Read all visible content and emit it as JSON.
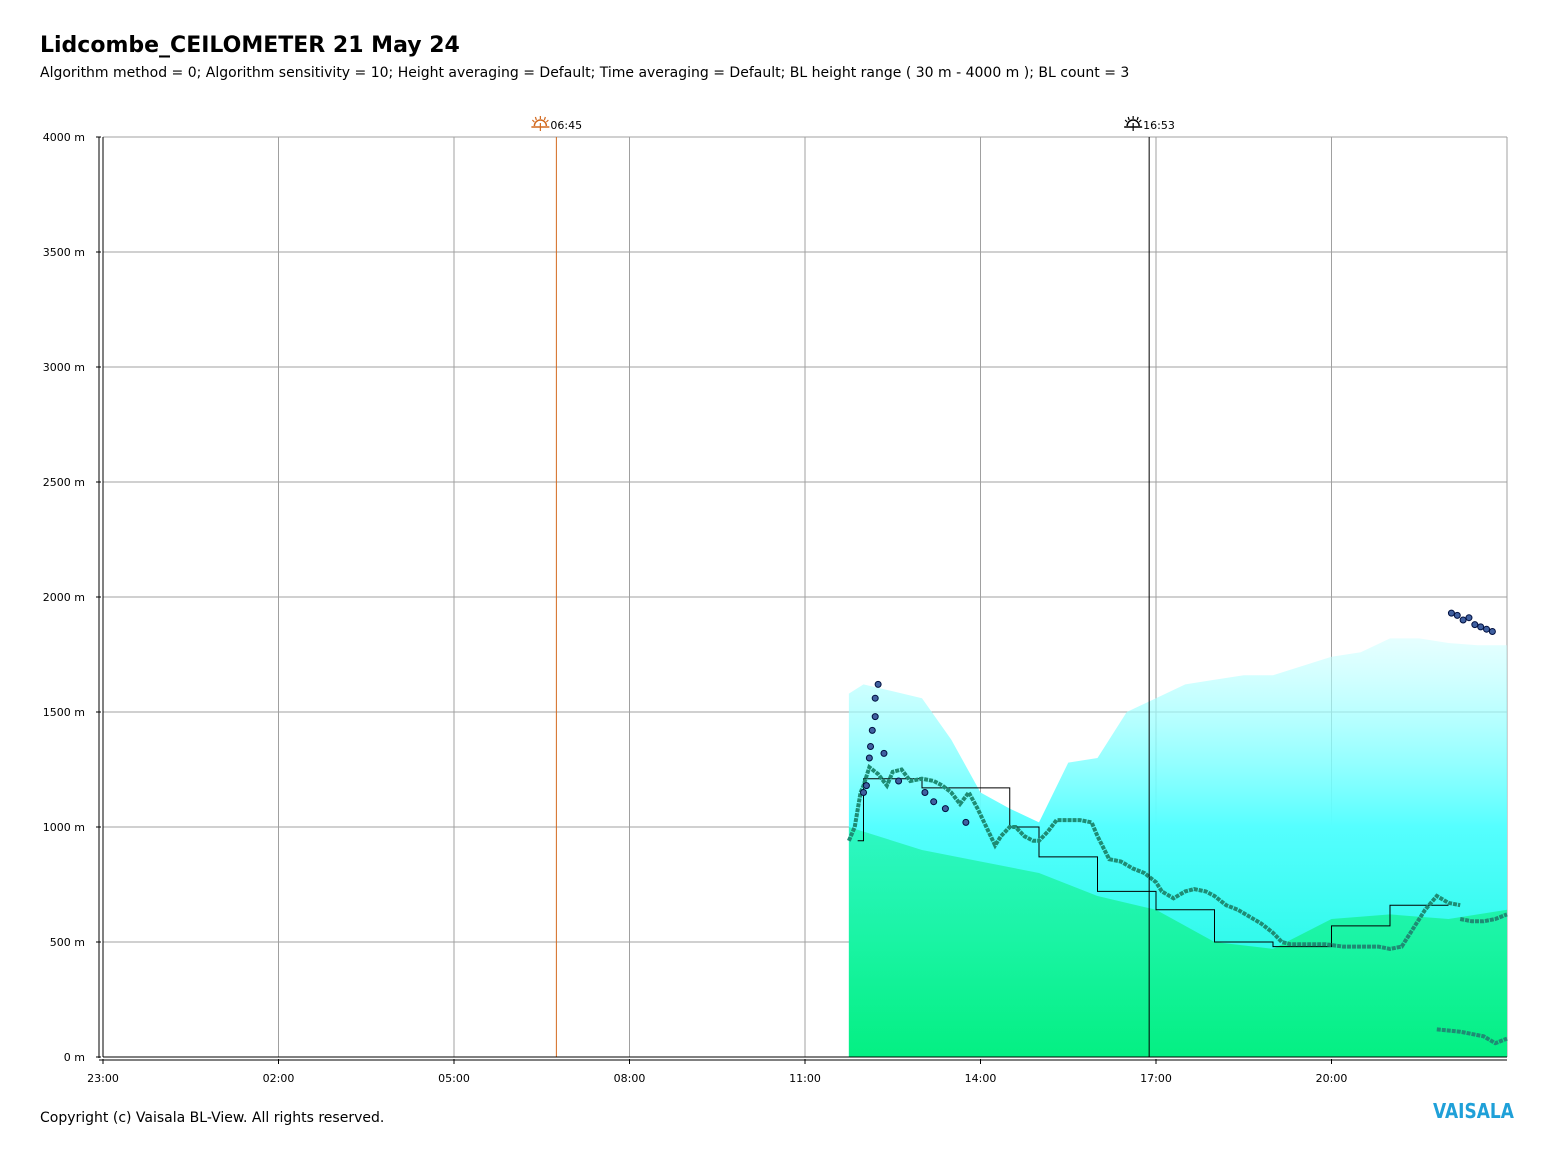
{
  "header": {
    "title": "Lidcombe_CEILOMETER 21 May 24",
    "subtitle": "Algorithm method = 0; Algorithm sensitivity = 10; Height averaging = Default; Time averaging = Default; BL height range ( 30 m - 4000 m ); BL count = 3"
  },
  "footer": {
    "copyright": "Copyright (c) Vaisala BL-View. All rights reserved.",
    "logo": "VAISALA"
  },
  "chart_data": {
    "type": "heatmap",
    "ylim": [
      0,
      4000
    ],
    "xlim_hours": [
      0,
      24
    ],
    "y_ticks": [
      {
        "value": 0,
        "label": "0 m"
      },
      {
        "value": 500,
        "label": "500 m"
      },
      {
        "value": 1000,
        "label": "1000 m"
      },
      {
        "value": 1500,
        "label": "1500 m"
      },
      {
        "value": 2000,
        "label": "2000 m"
      },
      {
        "value": 2500,
        "label": "2500 m"
      },
      {
        "value": 3000,
        "label": "3000 m"
      },
      {
        "value": 3500,
        "label": "3500 m"
      },
      {
        "value": 4000,
        "label": "4000 m"
      }
    ],
    "x_ticks": [
      {
        "value": 0,
        "label": "23:00"
      },
      {
        "value": 3,
        "label": "02:00"
      },
      {
        "value": 6,
        "label": "05:00"
      },
      {
        "value": 9,
        "label": "08:00"
      },
      {
        "value": 12,
        "label": "11:00"
      },
      {
        "value": 15,
        "label": "14:00"
      },
      {
        "value": 18,
        "label": "17:00"
      },
      {
        "value": 21,
        "label": "20:00"
      }
    ],
    "grid": true,
    "sunrise": {
      "hour": 7.75,
      "label": "06:45",
      "color": "#d2691e"
    },
    "sunset": {
      "hour": 17.883,
      "label": "16:53",
      "color": "#000000"
    },
    "backscatter_area": {
      "start_hour": 12.75,
      "end_hour": 24,
      "top_m": [
        [
          12.75,
          1580
        ],
        [
          13.0,
          1620
        ],
        [
          13.5,
          1590
        ],
        [
          14.0,
          1560
        ],
        [
          14.5,
          1380
        ],
        [
          15.0,
          1150
        ],
        [
          15.5,
          1080
        ],
        [
          16.0,
          1020
        ],
        [
          16.5,
          1280
        ],
        [
          17.0,
          1300
        ],
        [
          17.5,
          1500
        ],
        [
          18.0,
          1560
        ],
        [
          18.5,
          1620
        ],
        [
          19.0,
          1640
        ],
        [
          19.5,
          1660
        ],
        [
          20.0,
          1660
        ],
        [
          20.5,
          1700
        ],
        [
          21.0,
          1740
        ],
        [
          21.5,
          1760
        ],
        [
          22.0,
          1820
        ],
        [
          22.5,
          1820
        ],
        [
          23.0,
          1800
        ],
        [
          23.5,
          1790
        ],
        [
          24.0,
          1790
        ]
      ],
      "green_top_m": [
        [
          12.75,
          1000
        ],
        [
          14.0,
          900
        ],
        [
          15.0,
          850
        ],
        [
          16.0,
          800
        ],
        [
          17.0,
          700
        ],
        [
          18.0,
          640
        ],
        [
          19.0,
          500
        ],
        [
          20.0,
          470
        ],
        [
          21.0,
          600
        ],
        [
          22.0,
          620
        ],
        [
          23.0,
          600
        ],
        [
          24.0,
          640
        ]
      ]
    },
    "series": [
      {
        "name": "BL 1",
        "color": "#1e8c74",
        "points": [
          [
            12.75,
            940
          ],
          [
            12.85,
            1000
          ],
          [
            12.95,
            1150
          ],
          [
            13.0,
            1180
          ],
          [
            13.1,
            1260
          ],
          [
            13.25,
            1230
          ],
          [
            13.4,
            1180
          ],
          [
            13.5,
            1240
          ],
          [
            13.65,
            1250
          ],
          [
            13.8,
            1200
          ],
          [
            14.0,
            1210
          ],
          [
            14.2,
            1200
          ],
          [
            14.35,
            1180
          ],
          [
            14.5,
            1150
          ],
          [
            14.65,
            1100
          ],
          [
            14.8,
            1150
          ],
          [
            14.95,
            1080
          ],
          [
            15.1,
            1000
          ],
          [
            15.25,
            920
          ],
          [
            15.35,
            960
          ],
          [
            15.5,
            1000
          ],
          [
            15.6,
            1000
          ],
          [
            15.75,
            960
          ],
          [
            15.9,
            940
          ],
          [
            16.0,
            940
          ],
          [
            16.15,
            980
          ],
          [
            16.3,
            1030
          ],
          [
            16.5,
            1030
          ],
          [
            16.7,
            1030
          ],
          [
            16.9,
            1020
          ],
          [
            17.0,
            960
          ],
          [
            17.2,
            860
          ],
          [
            17.4,
            850
          ],
          [
            17.6,
            820
          ],
          [
            17.8,
            800
          ],
          [
            18.0,
            760
          ],
          [
            18.1,
            720
          ],
          [
            18.3,
            690
          ],
          [
            18.5,
            720
          ],
          [
            18.65,
            730
          ],
          [
            18.85,
            720
          ],
          [
            19.0,
            700
          ],
          [
            19.2,
            660
          ],
          [
            19.4,
            640
          ],
          [
            19.6,
            610
          ],
          [
            19.8,
            580
          ],
          [
            20.0,
            540
          ],
          [
            20.15,
            500
          ],
          [
            20.3,
            490
          ],
          [
            20.6,
            490
          ],
          [
            20.9,
            490
          ],
          [
            21.2,
            480
          ],
          [
            21.5,
            480
          ],
          [
            21.8,
            480
          ],
          [
            22.0,
            470
          ],
          [
            22.2,
            480
          ],
          [
            22.4,
            560
          ],
          [
            22.6,
            640
          ],
          [
            22.8,
            700
          ],
          [
            23.0,
            670
          ],
          [
            23.2,
            660
          ]
        ]
      },
      {
        "name": "BL 2",
        "color": "#1e8c74",
        "points": [
          [
            22.8,
            120
          ],
          [
            23.2,
            110
          ],
          [
            23.6,
            90
          ],
          [
            23.8,
            60
          ],
          [
            24.0,
            80
          ],
          [
            24.5,
            100
          ],
          [
            25.0,
            120
          ],
          [
            25.5,
            130
          ],
          [
            26.0,
            140
          ]
        ]
      },
      {
        "name": "BL 3",
        "color": "#1e8c74",
        "points": [
          [
            23.2,
            600
          ],
          [
            23.4,
            590
          ],
          [
            23.6,
            590
          ],
          [
            23.8,
            600
          ],
          [
            24.0,
            620
          ],
          [
            24.1,
            640
          ]
        ]
      }
    ],
    "step_line": {
      "color": "#000000",
      "points": [
        [
          12.9,
          940
        ],
        [
          13.0,
          1210
        ],
        [
          14.0,
          1170
        ],
        [
          15.5,
          1000
        ],
        [
          16.0,
          870
        ],
        [
          17.0,
          720
        ],
        [
          18.0,
          640
        ],
        [
          19.0,
          500
        ],
        [
          20.0,
          480
        ],
        [
          21.0,
          570
        ],
        [
          22.0,
          660
        ],
        [
          23.0,
          660
        ]
      ]
    },
    "cloud_points": [
      [
        13.25,
        1620
      ],
      [
        13.2,
        1560
      ],
      [
        13.2,
        1480
      ],
      [
        13.15,
        1420
      ],
      [
        13.12,
        1350
      ],
      [
        13.1,
        1300
      ],
      [
        13.05,
        1180
      ],
      [
        13.0,
        1150
      ],
      [
        13.35,
        1320
      ],
      [
        13.6,
        1200
      ],
      [
        14.05,
        1150
      ],
      [
        14.2,
        1110
      ],
      [
        14.4,
        1080
      ],
      [
        14.75,
        1020
      ],
      [
        23.05,
        1930
      ],
      [
        23.15,
        1920
      ],
      [
        23.25,
        1900
      ],
      [
        23.35,
        1910
      ],
      [
        23.45,
        1880
      ],
      [
        23.55,
        1870
      ],
      [
        23.65,
        1860
      ],
      [
        23.75,
        1850
      ]
    ]
  }
}
